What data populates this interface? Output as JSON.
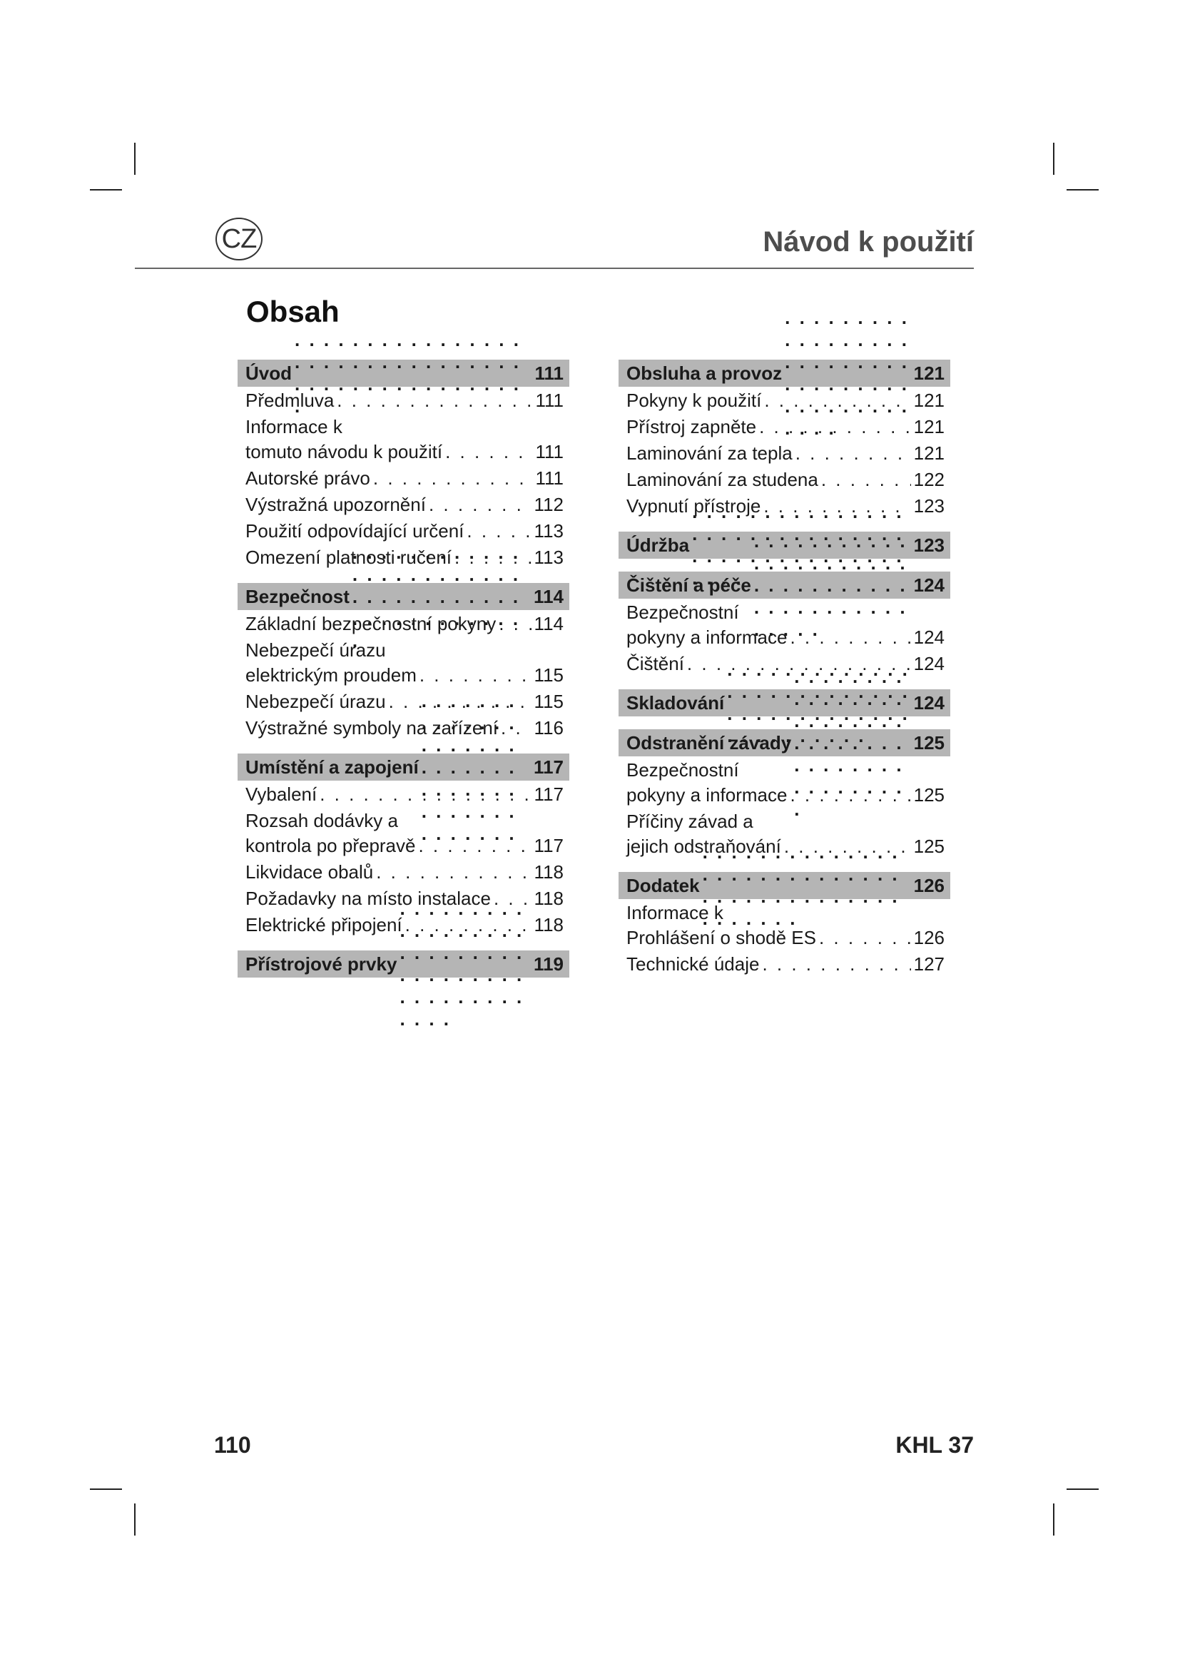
{
  "header": {
    "language_badge": "CZ",
    "title": "Návod k použití"
  },
  "toc_title": "Obsah",
  "columns": [
    [
      {
        "title": "Úvod",
        "page": "111",
        "items": [
          {
            "lines": [
              "Předmluva"
            ],
            "page": "111"
          },
          {
            "lines": [
              "Informace k",
              "tomuto návodu k použití"
            ],
            "page": "111"
          },
          {
            "lines": [
              "Autorské právo"
            ],
            "page": "111"
          },
          {
            "lines": [
              "Výstražná upozornění"
            ],
            "page": "112"
          },
          {
            "lines": [
              "Použití odpovídající určení"
            ],
            "page": "113"
          },
          {
            "lines": [
              "Omezení platnosti ručení"
            ],
            "page": "113"
          }
        ]
      },
      {
        "title": "Bezpečnost",
        "page": "114",
        "items": [
          {
            "lines": [
              "Základní bezpečnostní pokyny"
            ],
            "page": "114"
          },
          {
            "lines": [
              "Nebezpečí úrazu",
              "elektrickým proudem"
            ],
            "page": "115"
          },
          {
            "lines": [
              "Nebezpečí úrazu"
            ],
            "page": "115"
          },
          {
            "lines": [
              "Výstražné symboly na zařízení"
            ],
            "page": "116"
          }
        ]
      },
      {
        "title": "Umístění a zapojení",
        "page": "117",
        "items": [
          {
            "lines": [
              "Vybalení"
            ],
            "page": "117"
          },
          {
            "lines": [
              "Rozsah dodávky a",
              "kontrola po přepravě"
            ],
            "page": "117"
          },
          {
            "lines": [
              "Likvidace obalů"
            ],
            "page": "118"
          },
          {
            "lines": [
              "Požadavky na místo instalace"
            ],
            "page": "118"
          },
          {
            "lines": [
              "Elektrické připojení"
            ],
            "page": "118"
          }
        ]
      },
      {
        "title": "Přístrojové prvky",
        "page": "119",
        "items": []
      }
    ],
    [
      {
        "title": "Obsluha a provoz",
        "page": "121",
        "items": [
          {
            "lines": [
              "Pokyny k použití"
            ],
            "page": "121"
          },
          {
            "lines": [
              "Přístroj zapněte"
            ],
            "page": "121"
          },
          {
            "lines": [
              "Laminování za tepla"
            ],
            "page": "121"
          },
          {
            "lines": [
              "Laminování za studena"
            ],
            "page": "122"
          },
          {
            "lines": [
              "Vypnutí přístroje"
            ],
            "page": "123"
          }
        ]
      },
      {
        "title": "Údržba",
        "page": "123",
        "items": []
      },
      {
        "title": "Čištění a péče",
        "page": "124",
        "items": [
          {
            "lines": [
              "Bezpečnostní",
              "pokyny a informace"
            ],
            "page": "124"
          },
          {
            "lines": [
              "Čištění"
            ],
            "page": "124"
          }
        ]
      },
      {
        "title": "Skladování",
        "page": "124",
        "items": []
      },
      {
        "title": "Odstranění závady",
        "page": "125",
        "items": [
          {
            "lines": [
              "Bezpečnostní",
              "pokyny a informace"
            ],
            "page": "125"
          },
          {
            "lines": [
              "Příčiny závad a",
              "jejich odstraňování"
            ],
            "page": "125"
          }
        ]
      },
      {
        "title": "Dodatek",
        "page": "126",
        "items": [
          {
            "lines": [
              "Informace k",
              "Prohlášení o shodě ES"
            ],
            "page": "126"
          },
          {
            "lines": [
              "Technické údaje"
            ],
            "page": "127"
          }
        ]
      }
    ]
  ],
  "footer": {
    "page_number": "110",
    "model": "KHL 37"
  },
  "colors": {
    "section_bar": "#b5b5b5",
    "title": "#4d4d4d"
  }
}
